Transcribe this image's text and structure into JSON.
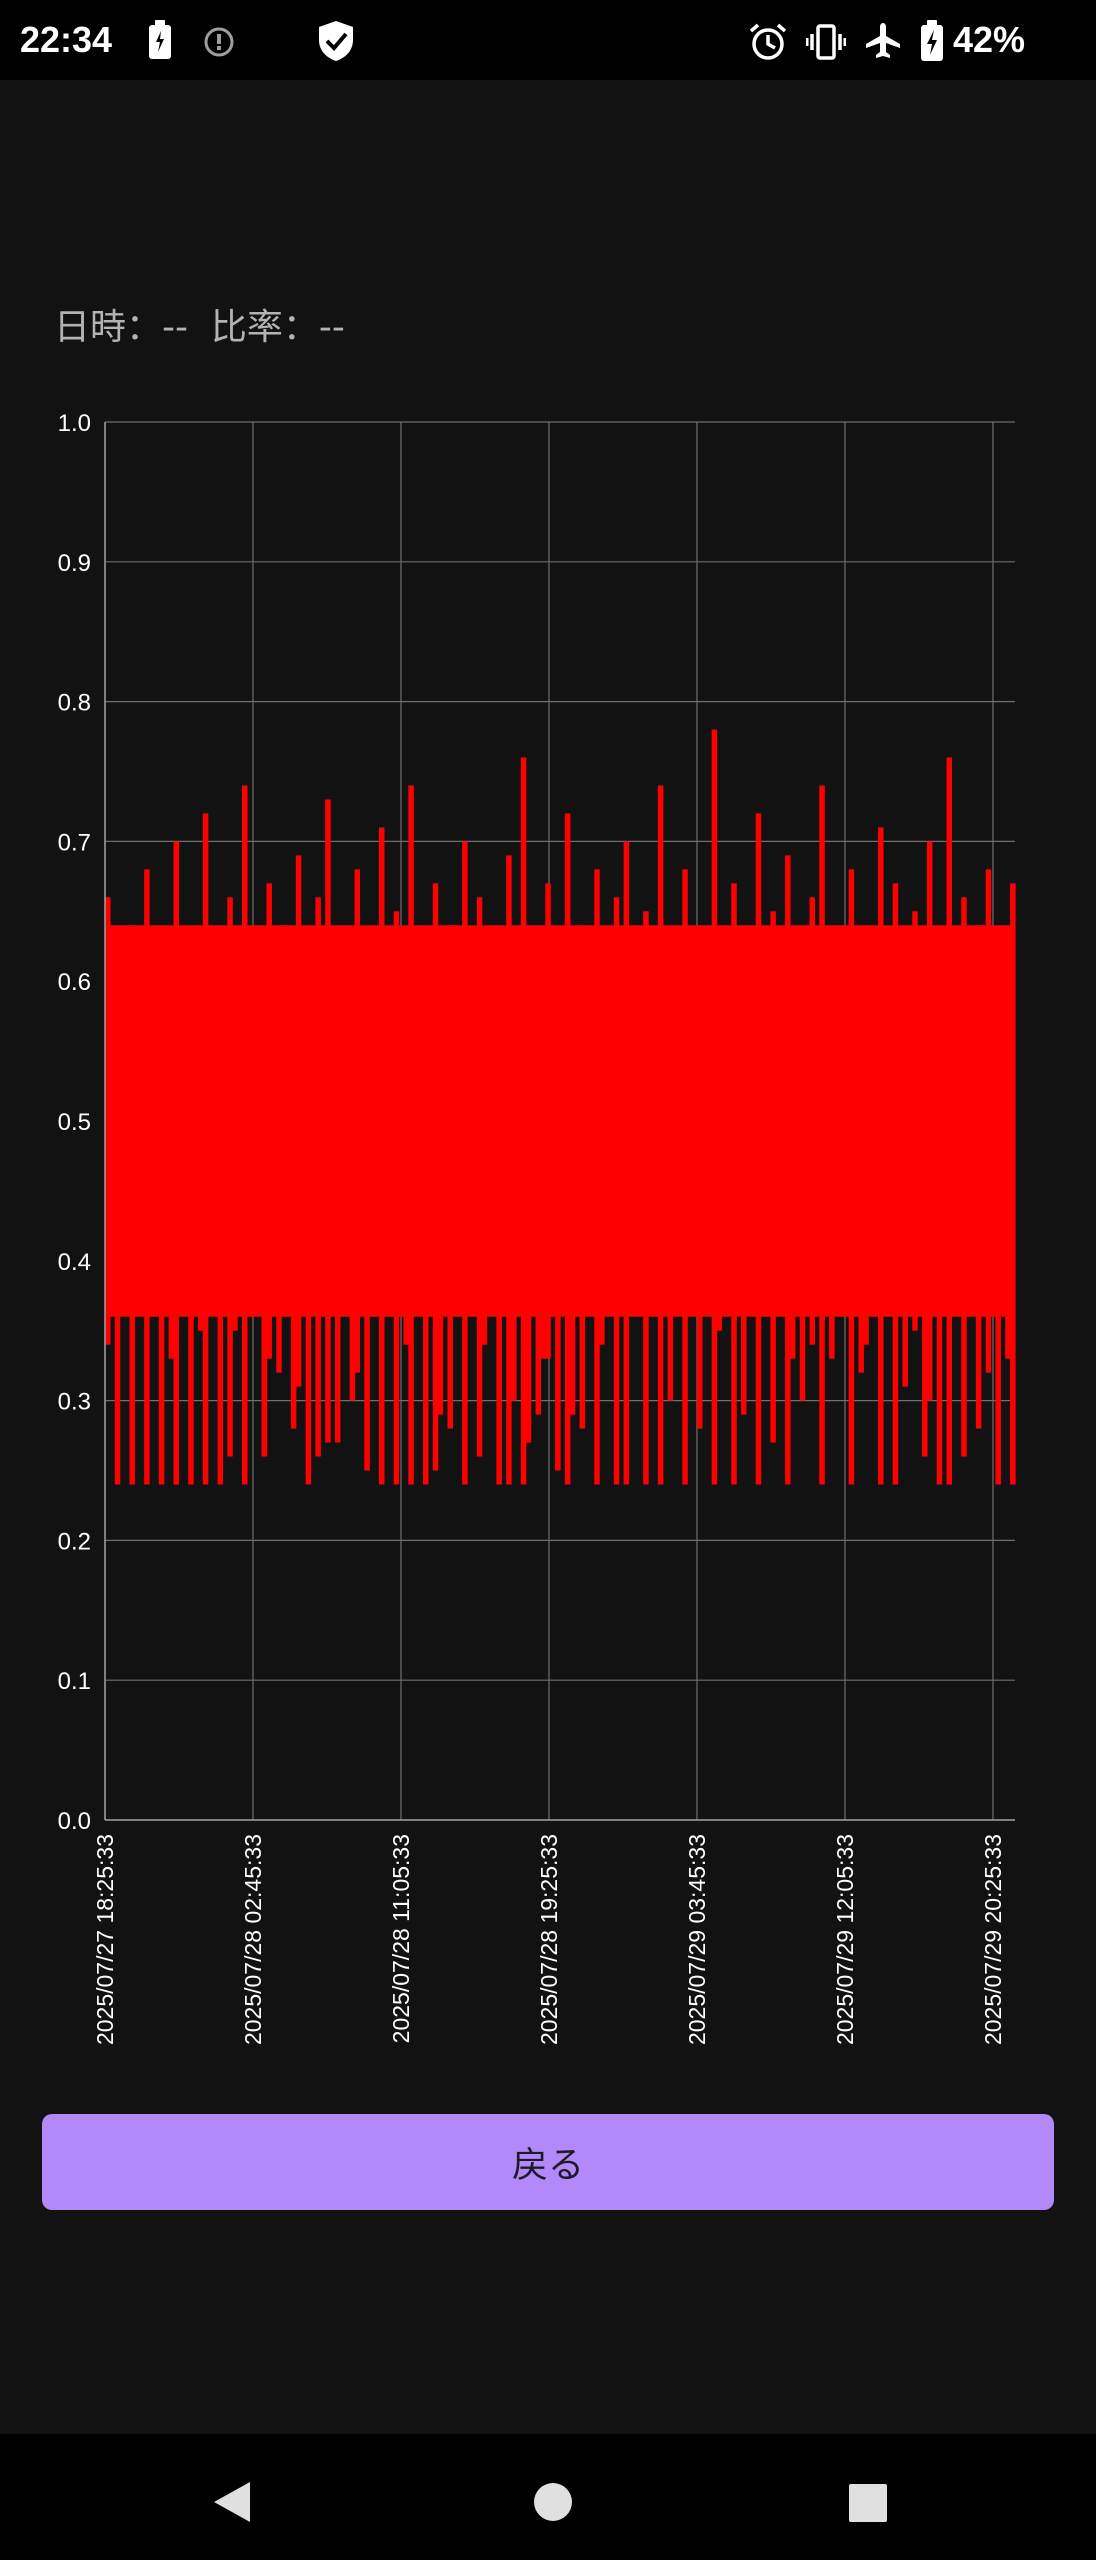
{
  "status_bar": {
    "time": "22:34",
    "battery_percent": "42%",
    "icons": [
      "battery-saver-icon",
      "info-icon",
      "shield-check-icon",
      "alarm-icon",
      "vibrate-icon",
      "airplane-icon",
      "battery-charging-icon"
    ]
  },
  "info": {
    "datetime_label": "日時：",
    "datetime_value": "--",
    "ratio_label": "比率：",
    "ratio_value": "--"
  },
  "chart_data": {
    "type": "bar",
    "title": "",
    "xlabel": "",
    "ylabel": "",
    "ylim": [
      0,
      1.0
    ],
    "yticks": [
      "0.0",
      "0.1",
      "0.2",
      "0.3",
      "0.4",
      "0.5",
      "0.6",
      "0.7",
      "0.8",
      "0.9",
      "1.0"
    ],
    "x_range": [
      "2025/07/27 18:25:33",
      "2025/07/29 21:40:00"
    ],
    "xticks": [
      "2025/07/27 18:25:33",
      "2025/07/28 02:45:33",
      "2025/07/28 11:05:33",
      "2025/07/28 19:25:33",
      "2025/07/29 03:45:33",
      "2025/07/29 12:05:33",
      "2025/07/29 20:25:33"
    ],
    "series_color": "#ff0000",
    "grid": true,
    "legend": "none",
    "series": [
      {
        "values": [
          0.66,
          0.38,
          0.62,
          0.58,
          0.42,
          0.64,
          0.52,
          0.46,
          0.68,
          0.36,
          0.55,
          0.61,
          0.44,
          0.59,
          0.7,
          0.4,
          0.5,
          0.63,
          0.34,
          0.57,
          0.72,
          0.45,
          0.53,
          0.6,
          0.38,
          0.66,
          0.49,
          0.55,
          0.74,
          0.42,
          0.61,
          0.36,
          0.58,
          0.67,
          0.47,
          0.52,
          0.64,
          0.3,
          0.56,
          0.69,
          0.44,
          0.6,
          0.51,
          0.66,
          0.39,
          0.73,
          0.48,
          0.57,
          0.62,
          0.35,
          0.54,
          0.68,
          0.46,
          0.59,
          0.63,
          0.41,
          0.71,
          0.5,
          0.56,
          0.65,
          0.33,
          0.58,
          0.74,
          0.45,
          0.52,
          0.61,
          0.4,
          0.67,
          0.55,
          0.48,
          0.64,
          0.37,
          0.6,
          0.7,
          0.43,
          0.53,
          0.66,
          0.5,
          0.58,
          0.36,
          0.62,
          0.47,
          0.69,
          0.54,
          0.44,
          0.76,
          0.57,
          0.41,
          0.63,
          0.51,
          0.67,
          0.35,
          0.59,
          0.48,
          0.72,
          0.55,
          0.45,
          0.64,
          0.39,
          0.61,
          0.68,
          0.5,
          0.56,
          0.43,
          0.66,
          0.53,
          0.7,
          0.38,
          0.6,
          0.47,
          0.65,
          0.57,
          0.42,
          0.74,
          0.52,
          0.62,
          0.34,
          0.58,
          0.68,
          0.46,
          0.55,
          0.64,
          0.4,
          0.61,
          0.78,
          0.49,
          0.57,
          0.44,
          0.67,
          0.53,
          0.63,
          0.37,
          0.6,
          0.72,
          0.47,
          0.56,
          0.65,
          0.42,
          0.58,
          0.69,
          0.51,
          0.45,
          0.62,
          0.39,
          0.66,
          0.55,
          0.74,
          0.48,
          0.59,
          0.43,
          0.64,
          0.52,
          0.68,
          0.36,
          0.6,
          0.5,
          0.63,
          0.46,
          0.71,
          0.56,
          0.41,
          0.67,
          0.54,
          0.61,
          0.38,
          0.65,
          0.49,
          0.58,
          0.7,
          0.45,
          0.62,
          0.53,
          0.76,
          0.44,
          0.6,
          0.66,
          0.48,
          0.57,
          0.64,
          0.4,
          0.68,
          0.52,
          0.63,
          0.36,
          0.59,
          0.67
        ]
      }
    ]
  },
  "back_button": {
    "label": "戻る"
  },
  "nav_bar": {
    "items": [
      "back-icon",
      "home-icon",
      "recents-icon"
    ]
  }
}
